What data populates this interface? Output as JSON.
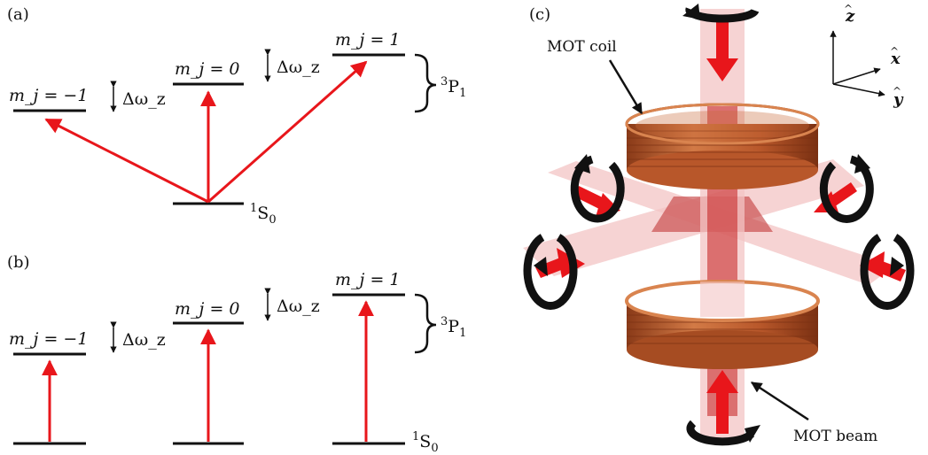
{
  "panel_a": {
    "label": "(a)",
    "levels": {
      "m_minus": "m_j = −1",
      "m_zero": "m_j = 0",
      "m_plus": "m_j = 1"
    },
    "splitting_left": "Δω_z",
    "splitting_right": "Δω_z",
    "ground_state": "1S0",
    "excited_state": "3P1"
  },
  "panel_b": {
    "label": "(b)",
    "levels": {
      "m_minus": "m_j = −1",
      "m_zero": "m_j = 0",
      "m_plus": "m_j = 1"
    },
    "splitting_left": "Δω_z",
    "splitting_right": "Δω_z",
    "ground_state": "1S0",
    "excited_state": "3P1"
  },
  "panel_c": {
    "label": "(c)",
    "coil_label": "MOT coil",
    "beam_label": "MOT beam",
    "axes": {
      "z": "z",
      "x": "x",
      "y": "y"
    }
  },
  "colors": {
    "arrow_red": "#e8161b",
    "coil_copper": "#b8572a",
    "beam_pink": "#f3c4c4",
    "beam_dark": "#b01818"
  }
}
